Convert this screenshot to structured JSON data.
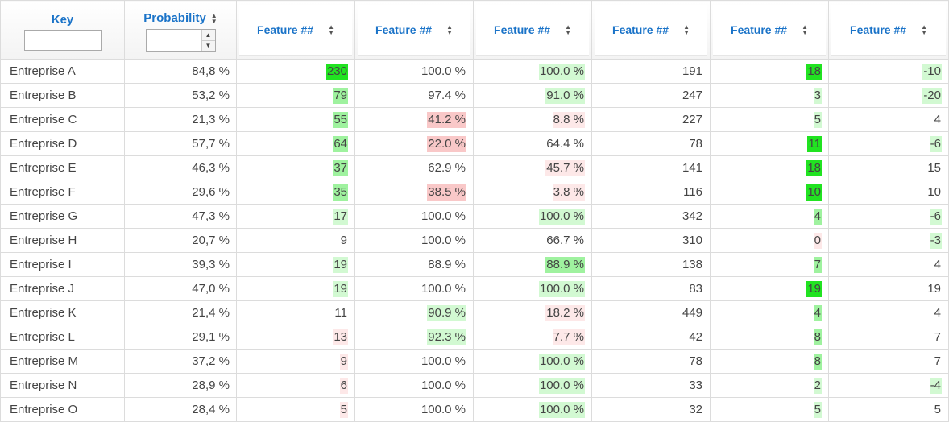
{
  "header": {
    "key_label": "Key",
    "key_filter_value": "",
    "probability_label": "Probability",
    "probability_filter_value": "",
    "features": [
      "Feature ##",
      "Feature ##",
      "Feature ##",
      "Feature ##",
      "Feature ##",
      "Feature ##"
    ]
  },
  "colors": {
    "header_text": "#1a73c8",
    "strong_green": "#21e321",
    "medium_green": "#9ff29f",
    "light_green": "#d2f9d2",
    "medium_red": "#f9c8c8",
    "light_red": "#fde8e8"
  },
  "rows": [
    {
      "key": "Entreprise A",
      "prob": "84,8 %",
      "f": [
        "230",
        "100.0 %",
        "100.0 %",
        "191",
        "18",
        "-10"
      ],
      "h": [
        "g3",
        "",
        "g1",
        "",
        "g3",
        "g1"
      ]
    },
    {
      "key": "Entreprise B",
      "prob": "53,2 %",
      "f": [
        "79",
        "97.4 %",
        "91.0 %",
        "247",
        "3",
        "-20"
      ],
      "h": [
        "g2",
        "",
        "g1",
        "",
        "g1",
        "g1"
      ]
    },
    {
      "key": "Entreprise C",
      "prob": "21,3 %",
      "f": [
        "55",
        "41.2 %",
        "8.8 %",
        "227",
        "5",
        "4"
      ],
      "h": [
        "g2",
        "r2",
        "r1",
        "",
        "g1",
        ""
      ]
    },
    {
      "key": "Entreprise D",
      "prob": "57,7 %",
      "f": [
        "64",
        "22.0 %",
        "64.4 %",
        "78",
        "11",
        "-6"
      ],
      "h": [
        "g2",
        "r2",
        "",
        "",
        "g3",
        "g1"
      ]
    },
    {
      "key": "Entreprise E",
      "prob": "46,3 %",
      "f": [
        "37",
        "62.9 %",
        "45.7 %",
        "141",
        "18",
        "15"
      ],
      "h": [
        "g2",
        "",
        "r1",
        "",
        "g3",
        ""
      ]
    },
    {
      "key": "Entreprise F",
      "prob": "29,6 %",
      "f": [
        "35",
        "38.5 %",
        "3.8 %",
        "116",
        "10",
        "10"
      ],
      "h": [
        "g2",
        "r2",
        "r1",
        "",
        "g3",
        ""
      ]
    },
    {
      "key": "Entreprise G",
      "prob": "47,3 %",
      "f": [
        "17",
        "100.0 %",
        "100.0 %",
        "342",
        "4",
        "-6"
      ],
      "h": [
        "g1",
        "",
        "g1",
        "",
        "g2",
        "g1"
      ]
    },
    {
      "key": "Entreprise H",
      "prob": "20,7 %",
      "f": [
        "9",
        "100.0 %",
        "66.7 %",
        "310",
        "0",
        "-3"
      ],
      "h": [
        "",
        "",
        "",
        "",
        "r1",
        "g1"
      ]
    },
    {
      "key": "Entreprise I",
      "prob": "39,3 %",
      "f": [
        "19",
        "88.9 %",
        "88.9 %",
        "138",
        "7",
        "4"
      ],
      "h": [
        "g1",
        "",
        "g2",
        "",
        "g2",
        ""
      ]
    },
    {
      "key": "Entreprise J",
      "prob": "47,0 %",
      "f": [
        "19",
        "100.0 %",
        "100.0 %",
        "83",
        "19",
        "19"
      ],
      "h": [
        "g1",
        "",
        "g1",
        "",
        "g3",
        ""
      ]
    },
    {
      "key": "Entreprise K",
      "prob": "21,4 %",
      "f": [
        "11",
        "90.9 %",
        "18.2 %",
        "449",
        "4",
        "4"
      ],
      "h": [
        "",
        "g1",
        "r1",
        "",
        "g2",
        ""
      ]
    },
    {
      "key": "Entreprise L",
      "prob": "29,1 %",
      "f": [
        "13",
        "92.3 %",
        "7.7 %",
        "42",
        "8",
        "7"
      ],
      "h": [
        "r1",
        "g1",
        "r1",
        "",
        "g2",
        ""
      ]
    },
    {
      "key": "Entreprise M",
      "prob": "37,2 %",
      "f": [
        "9",
        "100.0 %",
        "100.0 %",
        "78",
        "8",
        "7"
      ],
      "h": [
        "r1",
        "",
        "g1",
        "",
        "g2",
        ""
      ]
    },
    {
      "key": "Entreprise N",
      "prob": "28,9 %",
      "f": [
        "6",
        "100.0 %",
        "100.0 %",
        "33",
        "2",
        "-4"
      ],
      "h": [
        "r1",
        "",
        "g1",
        "",
        "g1",
        "g1"
      ]
    },
    {
      "key": "Entreprise O",
      "prob": "28,4 %",
      "f": [
        "5",
        "100.0 %",
        "100.0 %",
        "32",
        "5",
        "5"
      ],
      "h": [
        "r1",
        "",
        "g1",
        "",
        "g1",
        ""
      ]
    }
  ]
}
